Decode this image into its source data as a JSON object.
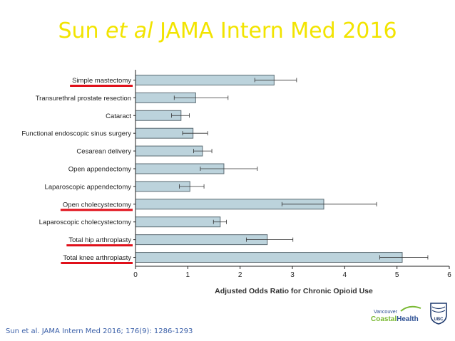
{
  "slide": {
    "title_prefix": "Sun ",
    "title_italic": "et al",
    "title_suffix": " JAMA Intern Med 2016",
    "citation": "Sun et al. JAMA Intern Med 2016; 176(9): 1286-1293",
    "logo_line1": "Vancouver",
    "logo_line2a": "Coastal",
    "logo_line2b": "Health",
    "logo_ubc": "UBC"
  },
  "colors": {
    "title": "#f2e400",
    "bar_fill": "#bcd3dc",
    "bar_stroke": "#5b6b73",
    "highlight_underline": "#e0101a",
    "citation": "#3a5fa8"
  },
  "chart_data": {
    "type": "bar",
    "orientation": "horizontal",
    "title": "",
    "xlabel": "Adjusted Odds Ratio for Chronic Opioid Use",
    "ylabel": "",
    "xlim": [
      0,
      6
    ],
    "xticks": [
      0,
      1,
      2,
      3,
      4,
      5,
      6
    ],
    "grid": false,
    "categories": [
      "Simple mastectomy",
      "Transurethral prostate resection",
      "Cataract",
      "Functional endoscopic sinus surgery",
      "Cesarean delivery",
      "Open appendectomy",
      "Laparoscopic appendectomy",
      "Open cholecystectomy",
      "Laparoscopic cholecystectomy",
      "Total hip arthroplasty",
      "Total knee arthroplasty"
    ],
    "values": [
      2.65,
      1.15,
      0.87,
      1.1,
      1.28,
      1.69,
      1.04,
      3.6,
      1.62,
      2.52,
      5.1
    ],
    "ci_low": [
      2.28,
      0.74,
      0.69,
      0.9,
      1.11,
      1.24,
      0.84,
      2.8,
      1.49,
      2.12,
      4.67
    ],
    "ci_high": [
      3.08,
      1.77,
      1.03,
      1.38,
      1.46,
      2.33,
      1.31,
      4.61,
      1.74,
      3.01,
      5.59
    ],
    "highlighted": [
      true,
      false,
      false,
      false,
      false,
      false,
      false,
      true,
      false,
      true,
      true
    ]
  }
}
